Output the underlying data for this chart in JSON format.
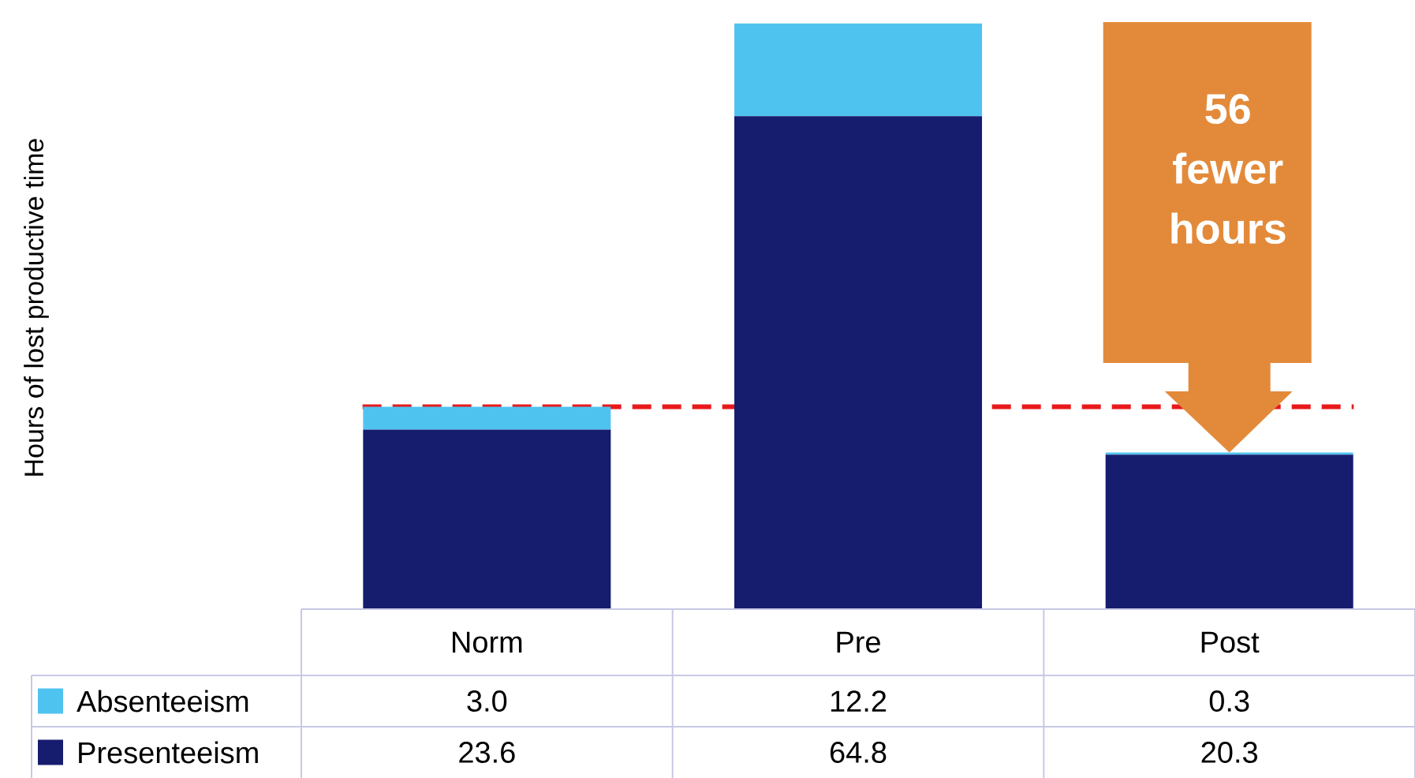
{
  "chart_data": {
    "type": "bar",
    "stacked": true,
    "categories": [
      "Norm",
      "Pre",
      "Post"
    ],
    "series": [
      {
        "name": "Presenteeism",
        "color": "#161c6e",
        "values": [
          23.6,
          64.8,
          20.3
        ],
        "value_labels": [
          "23.6",
          "64.8",
          "20.3"
        ]
      },
      {
        "name": "Absenteeism",
        "color": "#4fc3f0",
        "values": [
          3.0,
          12.2,
          0.3
        ],
        "value_labels": [
          "3.0",
          "12.2",
          "0.3"
        ]
      }
    ],
    "legend": "bottom left",
    "ref_lines": [
      {
        "axis": "y",
        "value": 26.6,
        "color": "#e8191b",
        "line_style": "dashed"
      }
    ],
    "annotations": [
      "Hours of lost productive time",
      "56 fewer hours"
    ]
  }
}
